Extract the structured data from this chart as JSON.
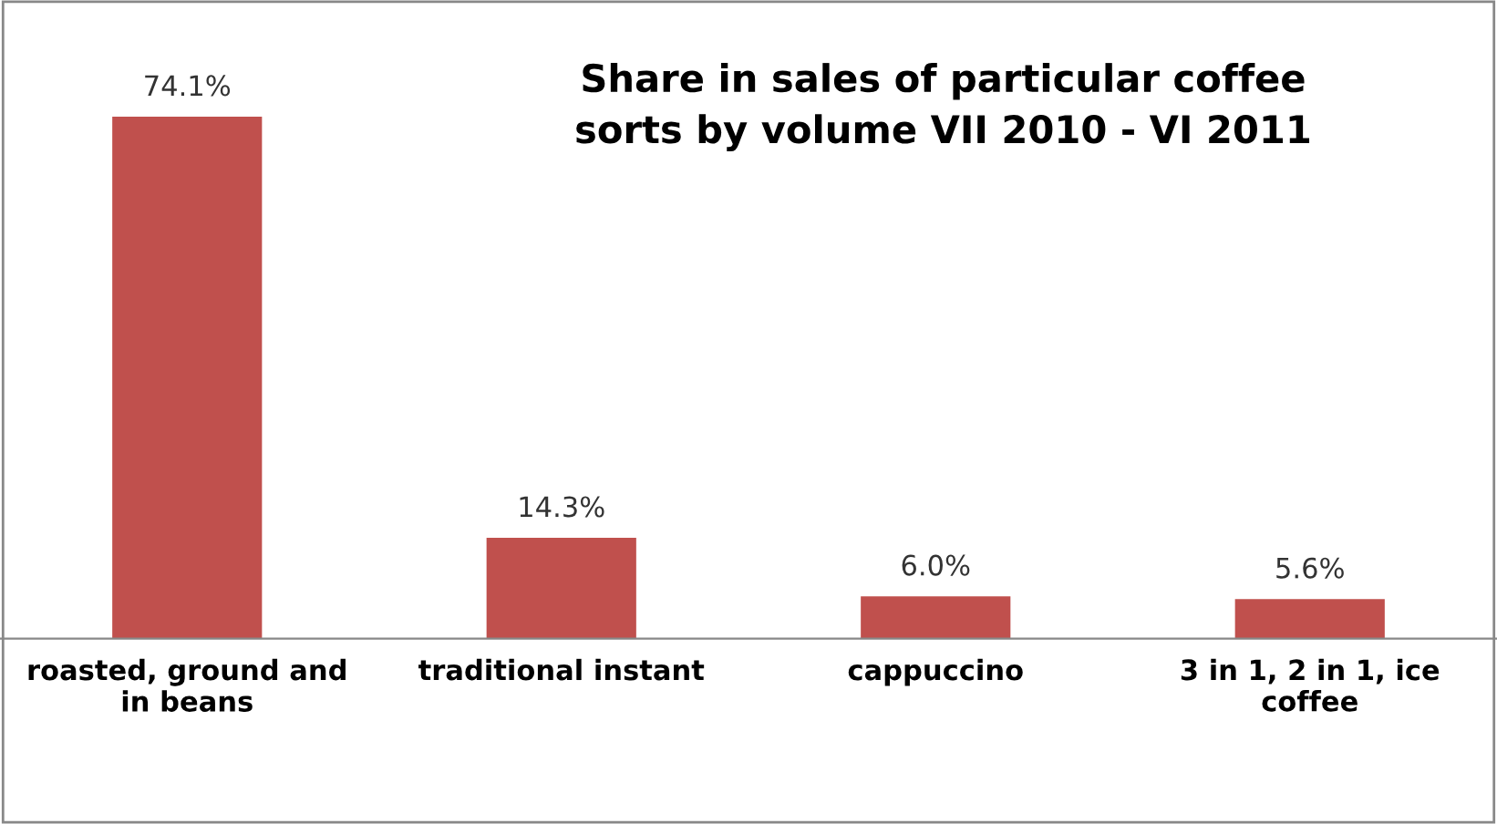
{
  "chart_data": {
    "type": "bar",
    "title": "Share in sales of particular coffee\nsorts by volume VII 2010 - VI 2011",
    "categories": [
      "roasted, ground and\nin beans",
      "traditional instant",
      "cappuccino",
      "3 in 1, 2 in 1, ice\ncoffee"
    ],
    "values": [
      74.1,
      14.3,
      6.0,
      5.6
    ],
    "value_labels": [
      "74.1%",
      "14.3%",
      "6.0%",
      "5.6%"
    ],
    "color": "#c0504d",
    "grid": false,
    "legend": false
  }
}
